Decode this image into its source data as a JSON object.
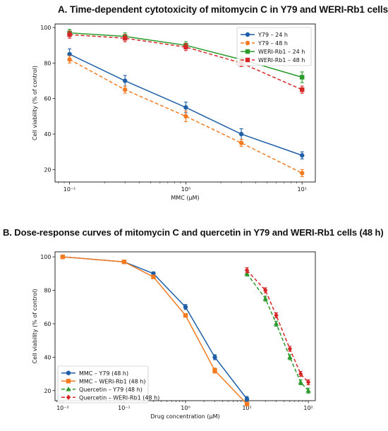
{
  "chart_data": [
    {
      "type": "line",
      "title": "A. Time-dependent cytotoxicity of mitomycin C in Y79 and WERI-Rb1 cells",
      "xlabel": "MMC (μM)",
      "ylabel": "Cell viability (% of control)",
      "xscale": "log",
      "xlim": [
        0.075,
        13
      ],
      "ylim": [
        13,
        102
      ],
      "xticks": [
        0.1,
        1,
        10
      ],
      "xtick_labels": [
        "10⁻¹",
        "10⁰",
        "10¹"
      ],
      "yticks": [
        20,
        40,
        60,
        80,
        100
      ],
      "legend_position": "top-right",
      "x": [
        0.1,
        0.3,
        1,
        3,
        10
      ],
      "series": [
        {
          "name": "Y79 – 24 h",
          "values": [
            85,
            70,
            55,
            40,
            28
          ],
          "errors": [
            3,
            3,
            3,
            3,
            2
          ],
          "color": "#1f5fa8",
          "linestyle": "solid",
          "marker": "circle"
        },
        {
          "name": "Y79 – 48 h",
          "values": [
            82,
            65,
            50,
            35,
            18
          ],
          "errors": [
            2,
            2,
            3,
            2,
            2
          ],
          "color": "#f47b20",
          "linestyle": "dashed",
          "marker": "circle"
        },
        {
          "name": "WERI-Rb1 – 24 h",
          "values": [
            97,
            95,
            90,
            82,
            72
          ],
          "errors": [
            2,
            2,
            2,
            2,
            3
          ],
          "color": "#2a9a2a",
          "linestyle": "solid",
          "marker": "square"
        },
        {
          "name": "WERI-Rb1 – 48 h",
          "values": [
            96,
            94,
            89,
            80,
            65
          ],
          "errors": [
            2,
            2,
            2,
            2,
            2
          ],
          "color": "#d62728",
          "linestyle": "dashed",
          "marker": "square"
        }
      ]
    },
    {
      "type": "line",
      "title": "B. Dose-response curves of mitomycin C and quercetin in Y79 and WERI-Rb1 cells (48 h)",
      "xlabel": "Drug concentration (μM)",
      "ylabel": "Cell viability (% of control)",
      "xscale": "log",
      "xlim": [
        0.0075,
        130
      ],
      "ylim": [
        14,
        103
      ],
      "xticks": [
        0.01,
        0.1,
        1,
        10,
        100
      ],
      "xtick_labels": [
        "10⁻²",
        "10⁻¹",
        "10⁰",
        "10¹",
        "10²"
      ],
      "yticks": [
        20,
        40,
        60,
        80,
        100
      ],
      "legend_position": "bottom-left",
      "series": [
        {
          "name": "MMC – Y79 (48 h)",
          "x": [
            0.01,
            0.1,
            0.3,
            1,
            3,
            10
          ],
          "values": [
            100,
            97,
            90,
            70,
            40,
            15
          ],
          "errors": [
            1,
            1,
            1,
            1.5,
            1.5,
            1.5
          ],
          "color": "#1f5fa8",
          "linestyle": "solid",
          "marker": "circle"
        },
        {
          "name": "MMC – WERI-Rb1 (48 h)",
          "x": [
            0.01,
            0.1,
            0.3,
            1,
            3,
            10
          ],
          "values": [
            100,
            97,
            88,
            65,
            32,
            12
          ],
          "errors": [
            1,
            1,
            1,
            1,
            1.5,
            1
          ],
          "color": "#f47b20",
          "linestyle": "solid",
          "marker": "square"
        },
        {
          "name": "Quercetin – Y79 (48 h)",
          "x": [
            10,
            20,
            30,
            50,
            75,
            100
          ],
          "values": [
            90,
            75,
            60,
            40,
            25,
            20
          ],
          "errors": [
            1.5,
            1.5,
            1.5,
            1.5,
            1.5,
            1.5
          ],
          "color": "#2a9a2a",
          "linestyle": "dashed",
          "marker": "triangle"
        },
        {
          "name": "Quercetin – WERI-Rb1 (48 h)",
          "x": [
            10,
            20,
            30,
            50,
            75,
            100
          ],
          "values": [
            92,
            80,
            65,
            45,
            30,
            25
          ],
          "errors": [
            1.5,
            1.5,
            1.5,
            1.5,
            1.5,
            1.5
          ],
          "color": "#d62728",
          "linestyle": "dashed",
          "marker": "diamond"
        }
      ]
    }
  ]
}
